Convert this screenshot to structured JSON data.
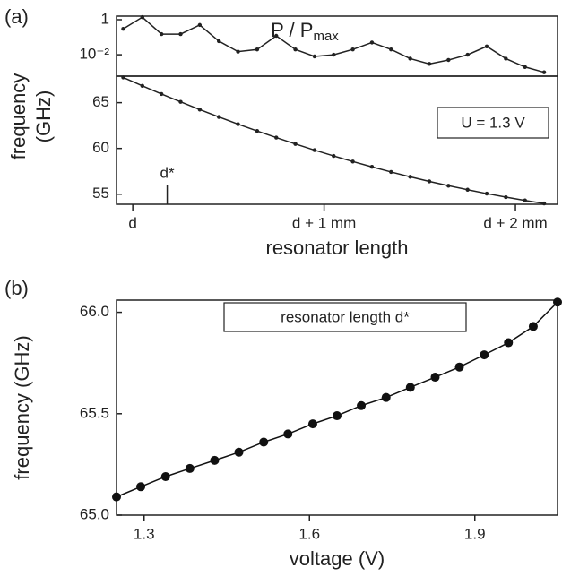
{
  "chart_data": [
    {
      "type": "line",
      "panel_label": "(a)",
      "title": "P / P",
      "title_sub": "max",
      "log_y": true,
      "color": "#222",
      "x": [
        -0.05,
        0.05,
        0.15,
        0.25,
        0.35,
        0.45,
        0.55,
        0.65,
        0.75,
        0.85,
        0.95,
        1.05,
        1.15,
        1.25,
        1.35,
        1.45,
        1.55,
        1.65,
        1.75,
        1.85,
        1.95,
        2.05,
        2.15
      ],
      "values": [
        0.3,
        1.4,
        0.15,
        0.15,
        0.5,
        0.06,
        0.015,
        0.02,
        0.12,
        0.02,
        0.008,
        0.01,
        0.02,
        0.05,
        0.02,
        0.006,
        0.003,
        0.005,
        0.01,
        0.03,
        0.006,
        0.002,
        0.001
      ],
      "xlim": [
        -0.085,
        2.22
      ],
      "ylim": [
        0.0006,
        1.6
      ],
      "yticks": [
        1,
        {
          "value": 0.01,
          "label": "10⁻²"
        }
      ]
    },
    {
      "type": "line",
      "color": "#222",
      "ylabel": [
        "frequency",
        "(GHz)"
      ],
      "xlabel": "resonator length",
      "x": [
        -0.05,
        0.05,
        0.15,
        0.25,
        0.35,
        0.45,
        0.55,
        0.65,
        0.75,
        0.85,
        0.95,
        1.05,
        1.15,
        1.25,
        1.35,
        1.45,
        1.55,
        1.65,
        1.75,
        1.85,
        1.95,
        2.05,
        2.15
      ],
      "values": [
        67.76,
        66.84,
        65.95,
        65.09,
        64.25,
        63.44,
        62.66,
        61.91,
        61.19,
        60.49,
        59.82,
        59.18,
        58.57,
        57.99,
        57.43,
        56.9,
        56.4,
        55.93,
        55.49,
        55.07,
        54.68,
        54.32,
        53.99
      ],
      "xlim": [
        -0.085,
        2.22
      ],
      "ylim": [
        53.9,
        67.9
      ],
      "yticks": [
        55,
        60,
        65
      ],
      "xticks": [
        {
          "value": 0,
          "label": "d"
        },
        {
          "value": 1,
          "label": "d + 1 mm"
        },
        {
          "value": 2,
          "label": "d + 2 mm"
        }
      ],
      "marker": {
        "x": 0.18,
        "label": "d*"
      },
      "annotation": "U = 1.3 V"
    },
    {
      "type": "line",
      "panel_label": "(b)",
      "color": "#111",
      "ylabel": "frequency (GHz)",
      "xlabel": "voltage (V)",
      "annotation": "resonator length d*",
      "x": [
        1.25,
        1.294,
        1.339,
        1.383,
        1.428,
        1.472,
        1.517,
        1.561,
        1.606,
        1.65,
        1.694,
        1.739,
        1.783,
        1.828,
        1.872,
        1.917,
        1.961,
        2.006,
        2.05
      ],
      "values": [
        65.09,
        65.14,
        65.19,
        65.23,
        65.27,
        65.31,
        65.36,
        65.4,
        65.45,
        65.49,
        65.54,
        65.58,
        65.63,
        65.68,
        65.73,
        65.79,
        65.85,
        65.93,
        66.05
      ],
      "xlim": [
        1.25,
        2.05
      ],
      "ylim": [
        65.0,
        66.06
      ],
      "xticks": [
        1.3,
        1.6,
        1.9
      ],
      "yticks": [
        {
          "value": 65.0,
          "label": "65.0"
        },
        {
          "value": 65.5,
          "label": "65.5"
        },
        {
          "value": 66.0,
          "label": "66.0"
        }
      ]
    }
  ]
}
